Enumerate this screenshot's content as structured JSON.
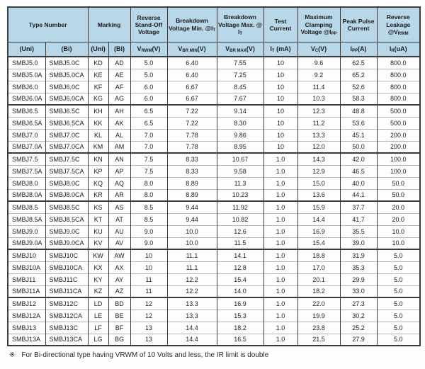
{
  "colors": {
    "header_bg": "#b8d7e9",
    "border_dark": "#3c3c3c",
    "row_line": "#b5b5b5",
    "text": "#1c1c1c"
  },
  "footnote": {
    "symbol": "※",
    "text": "For Bi-directional type having VRWM of 10 Volts and less, the IR limit is double"
  },
  "table": {
    "group_size": 4,
    "header_top": [
      {
        "segments": [
          {
            "t": "Type Number"
          }
        ]
      },
      {
        "segments": [
          {
            "t": "Marking"
          }
        ]
      },
      {
        "segments": [
          {
            "t": "Reverse Stand-Off Voltage"
          }
        ]
      },
      {
        "segments": [
          {
            "t": "Breakdown Voltage Min. @I"
          },
          {
            "s": "T"
          }
        ]
      },
      {
        "segments": [
          {
            "t": "Breakdown Voltage Max. @ I"
          },
          {
            "s": "T"
          }
        ]
      },
      {
        "segments": [
          {
            "t": "Test Current"
          }
        ]
      },
      {
        "segments": [
          {
            "t": "Maximum Clamping Voltage @I"
          },
          {
            "s": "PP"
          }
        ]
      },
      {
        "segments": [
          {
            "t": "Peak Pulse Current"
          }
        ]
      },
      {
        "segments": [
          {
            "t": "Reverse Leakage @V"
          },
          {
            "s": "RWM"
          }
        ]
      }
    ],
    "header_sub": [
      {
        "segments": [
          {
            "t": "(Uni)"
          }
        ]
      },
      {
        "segments": [
          {
            "t": "(Bi)"
          }
        ]
      },
      {
        "segments": [
          {
            "t": "(Uni)"
          }
        ]
      },
      {
        "segments": [
          {
            "t": "(Bi)"
          }
        ]
      },
      {
        "segments": [
          {
            "t": "V"
          },
          {
            "s": "RWM"
          },
          {
            "t": "(V)"
          }
        ]
      },
      {
        "segments": [
          {
            "t": "V"
          },
          {
            "s": "BR MIN"
          },
          {
            "t": "(V)"
          }
        ]
      },
      {
        "segments": [
          {
            "t": "V"
          },
          {
            "s": "BR MAX"
          },
          {
            "t": "(V)"
          }
        ]
      },
      {
        "segments": [
          {
            "t": "I"
          },
          {
            "s": "T"
          },
          {
            "t": " (mA)"
          }
        ]
      },
      {
        "segments": [
          {
            "t": "V"
          },
          {
            "s": "C"
          },
          {
            "t": "(V)"
          }
        ]
      },
      {
        "segments": [
          {
            "t": "I"
          },
          {
            "s": "PP"
          },
          {
            "t": "(A)"
          }
        ]
      },
      {
        "segments": [
          {
            "t": "I"
          },
          {
            "s": "R"
          },
          {
            "t": "(uA)"
          }
        ]
      }
    ],
    "rows": [
      [
        "SMBJ5.0",
        "SMBJ5.0C",
        "KD",
        "AD",
        "5.0",
        "6.40",
        "7.55",
        "10",
        "9.6",
        "62.5",
        "800.0"
      ],
      [
        "SMBJ5.0A",
        "SMBJ5.0CA",
        "KE",
        "AE",
        "5.0",
        "6.40",
        "7.25",
        "10",
        "9.2",
        "65.2",
        "800.0"
      ],
      [
        "SMBJ6.0",
        "SMBJ6.0C",
        "KF",
        "AF",
        "6.0",
        "6.67",
        "8.45",
        "10",
        "11.4",
        "52.6",
        "800.0"
      ],
      [
        "SMBJ6.0A",
        "SMBJ6.0CA",
        "KG",
        "AG",
        "6.0",
        "6.67",
        "7.67",
        "10",
        "10.3",
        "58.3",
        "800.0"
      ],
      [
        "SMBJ6.5",
        "SMBJ6.5C",
        "KH",
        "AH",
        "6.5",
        "7.22",
        "9.14",
        "10",
        "12.3",
        "48.8",
        "500.0"
      ],
      [
        "SMBJ6.5A",
        "SMBJ6.5CA",
        "KK",
        "AK",
        "6.5",
        "7.22",
        "8.30",
        "10",
        "11.2",
        "53.6",
        "500.0"
      ],
      [
        "SMBJ7.0",
        "SMBJ7.0C",
        "KL",
        "AL",
        "7.0",
        "7.78",
        "9.86",
        "10",
        "13.3",
        "45.1",
        "200.0"
      ],
      [
        "SMBJ7.0A",
        "SMBJ7.0CA",
        "KM",
        "AM",
        "7.0",
        "7.78",
        "8.95",
        "10",
        "12.0",
        "50.0",
        "200.0"
      ],
      [
        "SMBJ7.5",
        "SMBJ7.5C",
        "KN",
        "AN",
        "7.5",
        "8.33",
        "10.67",
        "1.0",
        "14.3",
        "42.0",
        "100.0"
      ],
      [
        "SMBJ7.5A",
        "SMBJ7.5CA",
        "KP",
        "AP",
        "7.5",
        "8.33",
        "9.58",
        "1.0",
        "12.9",
        "46.5",
        "100.0"
      ],
      [
        "SMBJ8.0",
        "SMBJ8.0C",
        "KQ",
        "AQ",
        "8.0",
        "8.89",
        "11.3",
        "1.0",
        "15.0",
        "40.0",
        "50.0"
      ],
      [
        "SMBJ8.0A",
        "SMBJ8.0CA",
        "KR",
        "AR",
        "8.0",
        "8.89",
        "10.23",
        "1.0",
        "13.6",
        "44.1",
        "50.0"
      ],
      [
        "SMBJ8.5",
        "SMBJ8.5C",
        "KS",
        "AS",
        "8.5",
        "9.44",
        "11.92",
        "1.0",
        "15.9",
        "37.7",
        "20.0"
      ],
      [
        "SMBJ8.5A",
        "SMBJ8.5CA",
        "KT",
        "AT",
        "8.5",
        "9.44",
        "10.82",
        "1.0",
        "14.4",
        "41.7",
        "20.0"
      ],
      [
        "SMBJ9.0",
        "SMBJ9.0C",
        "KU",
        "AU",
        "9.0",
        "10.0",
        "12.6",
        "1.0",
        "16.9",
        "35.5",
        "10.0"
      ],
      [
        "SMBJ9.0A",
        "SMBJ9.0CA",
        "KV",
        "AV",
        "9.0",
        "10.0",
        "11.5",
        "1.0",
        "15.4",
        "39.0",
        "10.0"
      ],
      [
        "SMBJ10",
        "SMBJ10C",
        "KW",
        "AW",
        "10",
        "11.1",
        "14.1",
        "1.0",
        "18.8",
        "31.9",
        "5.0"
      ],
      [
        "SMBJ10A",
        "SMBJ10CA",
        "KX",
        "AX",
        "10",
        "11.1",
        "12.8",
        "1.0",
        "17.0",
        "35.3",
        "5.0"
      ],
      [
        "SMBJ11",
        "SMBJ11C",
        "KY",
        "AY",
        "11",
        "12.2",
        "15.4",
        "1.0",
        "20.1",
        "29.9",
        "5.0"
      ],
      [
        "SMBJ11A",
        "SMBJ11CA",
        "KZ",
        "AZ",
        "11",
        "12.2",
        "14.0",
        "1.0",
        "18.2",
        "33.0",
        "5.0"
      ],
      [
        "SMBJ12",
        "SMBJ12C",
        "LD",
        "BD",
        "12",
        "13.3",
        "16.9",
        "1.0",
        "22.0",
        "27.3",
        "5.0"
      ],
      [
        "SMBJ12A",
        "SMBJ12CA",
        "LE",
        "BE",
        "12",
        "13.3",
        "15.3",
        "1.0",
        "19.9",
        "30.2",
        "5.0"
      ],
      [
        "SMBJ13",
        "SMBJ13C",
        "LF",
        "BF",
        "13",
        "14.4",
        "18.2",
        "1.0",
        "23.8",
        "25.2",
        "5.0"
      ],
      [
        "SMBJ13A",
        "SMBJ13CA",
        "LG",
        "BG",
        "13",
        "14.4",
        "16.5",
        "1.0",
        "21.5",
        "27.9",
        "5.0"
      ]
    ]
  }
}
